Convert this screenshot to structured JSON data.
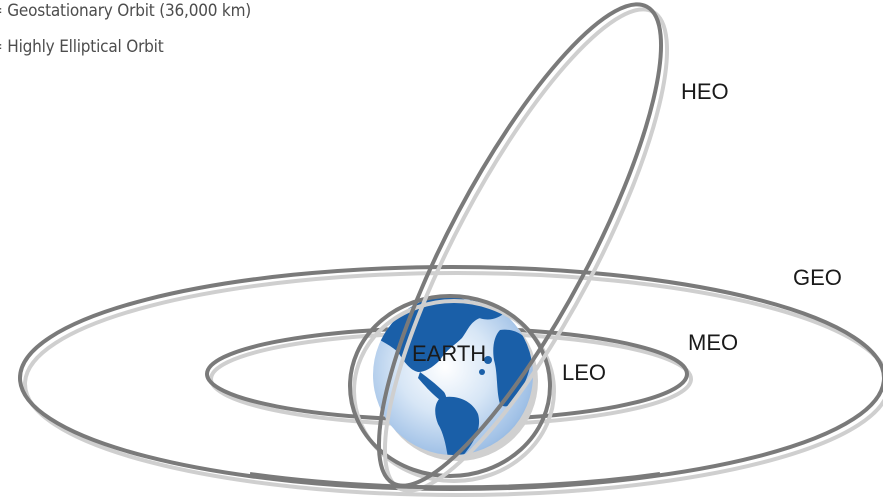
{
  "legend": {
    "geo": "= Geostationary Orbit (36,000 km)",
    "heo": "= Highly Elliptical Orbit"
  },
  "labels": {
    "heo": "HEO",
    "geo": "GEO",
    "meo": "MEO",
    "leo": "LEO",
    "earth": "EARTH"
  },
  "colors": {
    "orbit": "#7a7a7a",
    "orbit_shadow": "#cfcfcf",
    "ocean": "#1f6fc2",
    "land": "#1a5fa8"
  }
}
